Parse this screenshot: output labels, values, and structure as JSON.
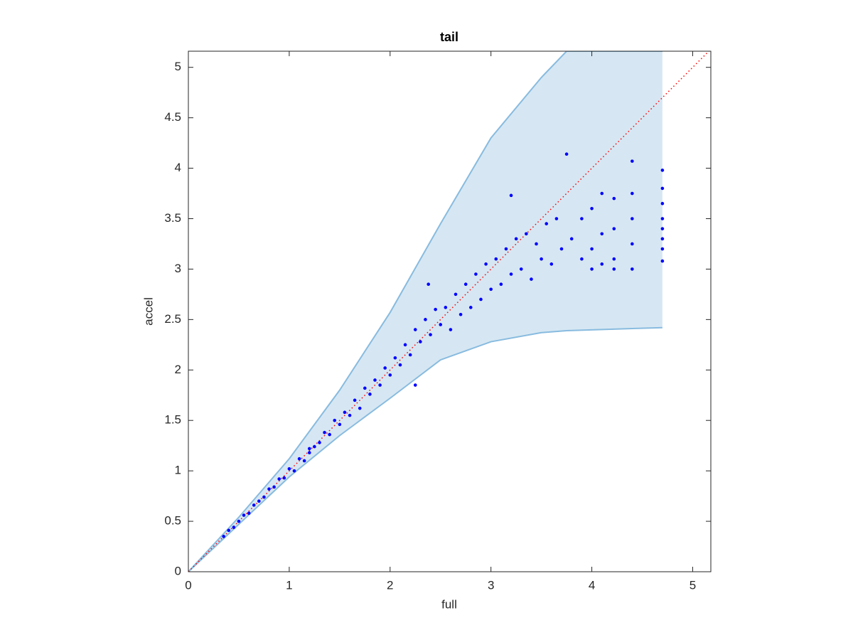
{
  "chart_data": {
    "type": "scatter",
    "title": "tail",
    "xlabel": "full",
    "ylabel": "accel",
    "xlim": [
      0,
      5.18
    ],
    "ylim": [
      0,
      5.16
    ],
    "xticks": [
      0,
      1,
      2,
      3,
      4,
      5
    ],
    "yticks": [
      0,
      0.5,
      1,
      1.5,
      2,
      2.5,
      3,
      3.5,
      4,
      4.5,
      5
    ],
    "color": "#0000ff",
    "x": [
      0.35,
      0.4,
      0.45,
      0.5,
      0.55,
      0.6,
      0.65,
      0.7,
      0.75,
      0.8,
      0.85,
      0.9,
      0.95,
      1.0,
      1.05,
      1.1,
      1.15,
      1.2,
      1.25,
      1.3,
      1.35,
      1.4,
      1.45,
      1.5,
      1.55,
      1.6,
      1.65,
      1.7,
      1.75,
      1.8,
      1.85,
      1.9,
      1.95,
      2.0,
      2.05,
      2.1,
      2.15,
      2.2,
      2.25,
      2.3,
      2.35,
      2.4,
      2.45,
      2.5,
      2.55,
      2.6,
      2.65,
      2.7,
      2.75,
      2.8,
      2.85,
      2.9,
      2.95,
      3.0,
      3.05,
      3.1,
      3.15,
      3.2,
      3.25,
      3.3,
      3.35,
      3.4,
      3.45,
      3.5,
      3.55,
      3.6,
      3.65,
      3.7,
      3.75,
      3.8,
      3.9,
      3.9,
      4.0,
      4.0,
      4.0,
      4.1,
      4.1,
      4.1,
      4.22,
      4.22,
      4.22,
      4.22,
      4.4,
      4.4,
      4.4,
      4.4,
      4.4,
      4.7,
      4.7,
      4.7,
      4.7,
      4.7,
      4.7,
      4.7,
      4.7,
      3.2,
      2.38,
      2.25,
      1.2
    ],
    "y": [
      0.35,
      0.41,
      0.44,
      0.5,
      0.56,
      0.58,
      0.66,
      0.7,
      0.74,
      0.82,
      0.84,
      0.92,
      0.93,
      1.02,
      1.0,
      1.12,
      1.1,
      1.22,
      1.24,
      1.28,
      1.38,
      1.36,
      1.5,
      1.46,
      1.58,
      1.55,
      1.7,
      1.62,
      1.82,
      1.76,
      1.9,
      1.85,
      2.02,
      1.95,
      2.12,
      2.05,
      2.25,
      2.15,
      2.4,
      2.28,
      2.5,
      2.35,
      2.6,
      2.45,
      2.62,
      2.4,
      2.75,
      2.55,
      2.85,
      2.62,
      2.95,
      2.7,
      3.05,
      2.8,
      3.1,
      2.85,
      3.2,
      2.95,
      3.3,
      3.0,
      3.35,
      2.9,
      3.25,
      3.1,
      3.45,
      3.05,
      3.5,
      3.2,
      4.14,
      3.3,
      3.5,
      3.1,
      3.6,
      3.2,
      3.0,
      3.75,
      3.35,
      3.05,
      3.7,
      3.4,
      3.1,
      3.0,
      4.07,
      3.75,
      3.5,
      3.25,
      3.0,
      3.98,
      3.8,
      3.65,
      3.5,
      3.4,
      3.3,
      3.2,
      3.08,
      3.73,
      2.85,
      1.85,
      1.18
    ],
    "band": {
      "fill": "#d6e7f3",
      "edge": "#88bbdf",
      "x": [
        0,
        0.5,
        1,
        1.5,
        2,
        2.5,
        3,
        3.5,
        3.75,
        4.7
      ],
      "upper": [
        0,
        0.54,
        1.12,
        1.8,
        2.57,
        3.45,
        4.3,
        4.9,
        5.16,
        5.16
      ],
      "lower": [
        0,
        0.47,
        0.94,
        1.35,
        1.72,
        2.1,
        2.28,
        2.37,
        2.39,
        2.42
      ]
    },
    "reference_line": {
      "x": [
        0,
        5.18
      ],
      "y": [
        0,
        5.18
      ],
      "color": "#ff0000"
    }
  }
}
